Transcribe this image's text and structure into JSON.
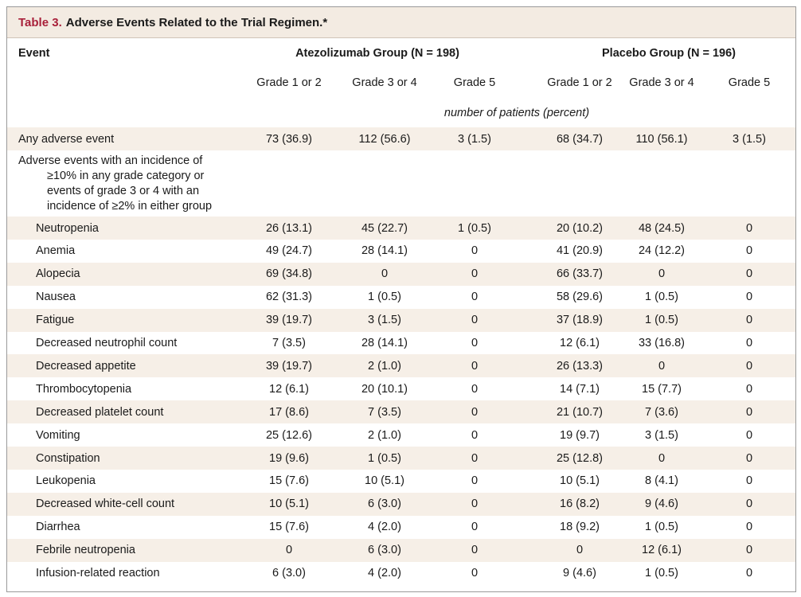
{
  "table": {
    "title_number": "Table 3.",
    "title_text": "Adverse Events Related to the Trial Regimen.*",
    "event_header": "Event",
    "group_headers": [
      "Atezolizumab Group (N = 198)",
      "Placebo Group (N = 196)"
    ],
    "grade_headers": [
      "Grade 1 or 2",
      "Grade 3 or 4",
      "Grade 5",
      "Grade 1 or 2",
      "Grade 3 or 4",
      "Grade 5"
    ],
    "units_note": "number of patients (percent)",
    "any_event": {
      "label": "Any adverse event",
      "values": [
        "73 (36.9)",
        "112 (56.6)",
        "3 (1.5)",
        "68 (34.7)",
        "110 (56.1)",
        "3 (1.5)"
      ]
    },
    "section_label_lines": [
      "Adverse events with an incidence of",
      "≥10% in any grade category or",
      "events of grade 3 or 4 with an",
      "incidence of ≥2% in either group"
    ],
    "rows": [
      {
        "label": "Neutropenia",
        "values": [
          "26 (13.1)",
          "45 (22.7)",
          "1 (0.5)",
          "20 (10.2)",
          "48 (24.5)",
          "0"
        ]
      },
      {
        "label": "Anemia",
        "values": [
          "49 (24.7)",
          "28 (14.1)",
          "0",
          "41 (20.9)",
          "24 (12.2)",
          "0"
        ]
      },
      {
        "label": "Alopecia",
        "values": [
          "69 (34.8)",
          "0",
          "0",
          "66 (33.7)",
          "0",
          "0"
        ]
      },
      {
        "label": "Nausea",
        "values": [
          "62 (31.3)",
          "1 (0.5)",
          "0",
          "58 (29.6)",
          "1 (0.5)",
          "0"
        ]
      },
      {
        "label": "Fatigue",
        "values": [
          "39 (19.7)",
          "3 (1.5)",
          "0",
          "37 (18.9)",
          "1 (0.5)",
          "0"
        ]
      },
      {
        "label": "Decreased neutrophil count",
        "values": [
          "7 (3.5)",
          "28 (14.1)",
          "0",
          "12 (6.1)",
          "33 (16.8)",
          "0"
        ]
      },
      {
        "label": "Decreased appetite",
        "values": [
          "39 (19.7)",
          "2 (1.0)",
          "0",
          "26 (13.3)",
          "0",
          "0"
        ]
      },
      {
        "label": "Thrombocytopenia",
        "values": [
          "12 (6.1)",
          "20 (10.1)",
          "0",
          "14 (7.1)",
          "15 (7.7)",
          "0"
        ]
      },
      {
        "label": "Decreased platelet count",
        "values": [
          "17 (8.6)",
          "7 (3.5)",
          "0",
          "21 (10.7)",
          "7 (3.6)",
          "0"
        ]
      },
      {
        "label": "Vomiting",
        "values": [
          "25 (12.6)",
          "2 (1.0)",
          "0",
          "19 (9.7)",
          "3 (1.5)",
          "0"
        ]
      },
      {
        "label": "Constipation",
        "values": [
          "19 (9.6)",
          "1 (0.5)",
          "0",
          "25 (12.8)",
          "0",
          "0"
        ]
      },
      {
        "label": "Leukopenia",
        "values": [
          "15 (7.6)",
          "10 (5.1)",
          "0",
          "10 (5.1)",
          "8 (4.1)",
          "0"
        ]
      },
      {
        "label": "Decreased white-cell count",
        "values": [
          "10 (5.1)",
          "6 (3.0)",
          "0",
          "16 (8.2)",
          "9 (4.6)",
          "0"
        ]
      },
      {
        "label": "Diarrhea",
        "values": [
          "15 (7.6)",
          "4 (2.0)",
          "0",
          "18 (9.2)",
          "1 (0.5)",
          "0"
        ]
      },
      {
        "label": "Febrile neutropenia",
        "values": [
          "0",
          "6 (3.0)",
          "0",
          "0",
          "12 (6.1)",
          "0"
        ]
      },
      {
        "label": "Infusion-related reaction",
        "values": [
          "6 (3.0)",
          "4 (2.0)",
          "0",
          "9 (4.6)",
          "1 (0.5)",
          "0"
        ]
      }
    ],
    "colors": {
      "title_accent": "#a8203a",
      "title_background": "#f3ebe2",
      "row_shade": "#f6efe7"
    }
  }
}
